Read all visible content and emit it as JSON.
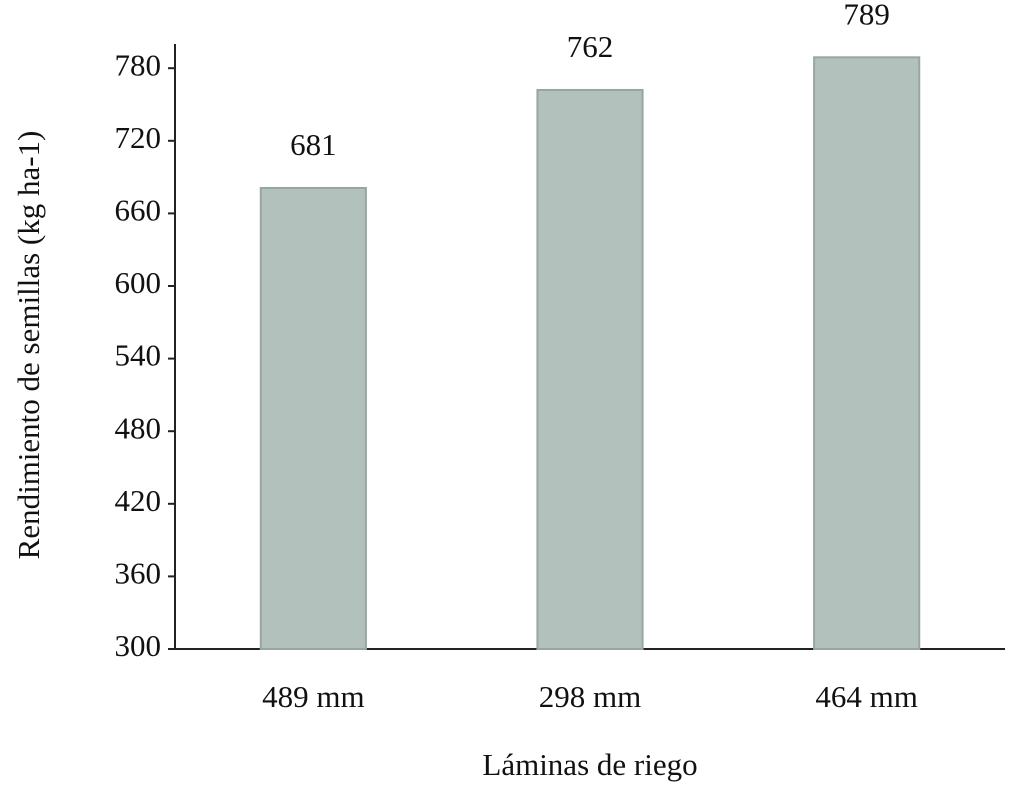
{
  "chart_data": {
    "type": "bar",
    "x_label": "Láminas de riego",
    "y_label": "Rendimiento de semillas (kg ha-1)",
    "categories": [
      "489 mm",
      "298 mm",
      "464 mm"
    ],
    "values": [
      681,
      762,
      789
    ],
    "color": "#b3c1bd",
    "ylim": [
      300,
      800
    ],
    "yticks": [
      300,
      360,
      420,
      480,
      540,
      600,
      660,
      720,
      780
    ],
    "grid": false
  }
}
